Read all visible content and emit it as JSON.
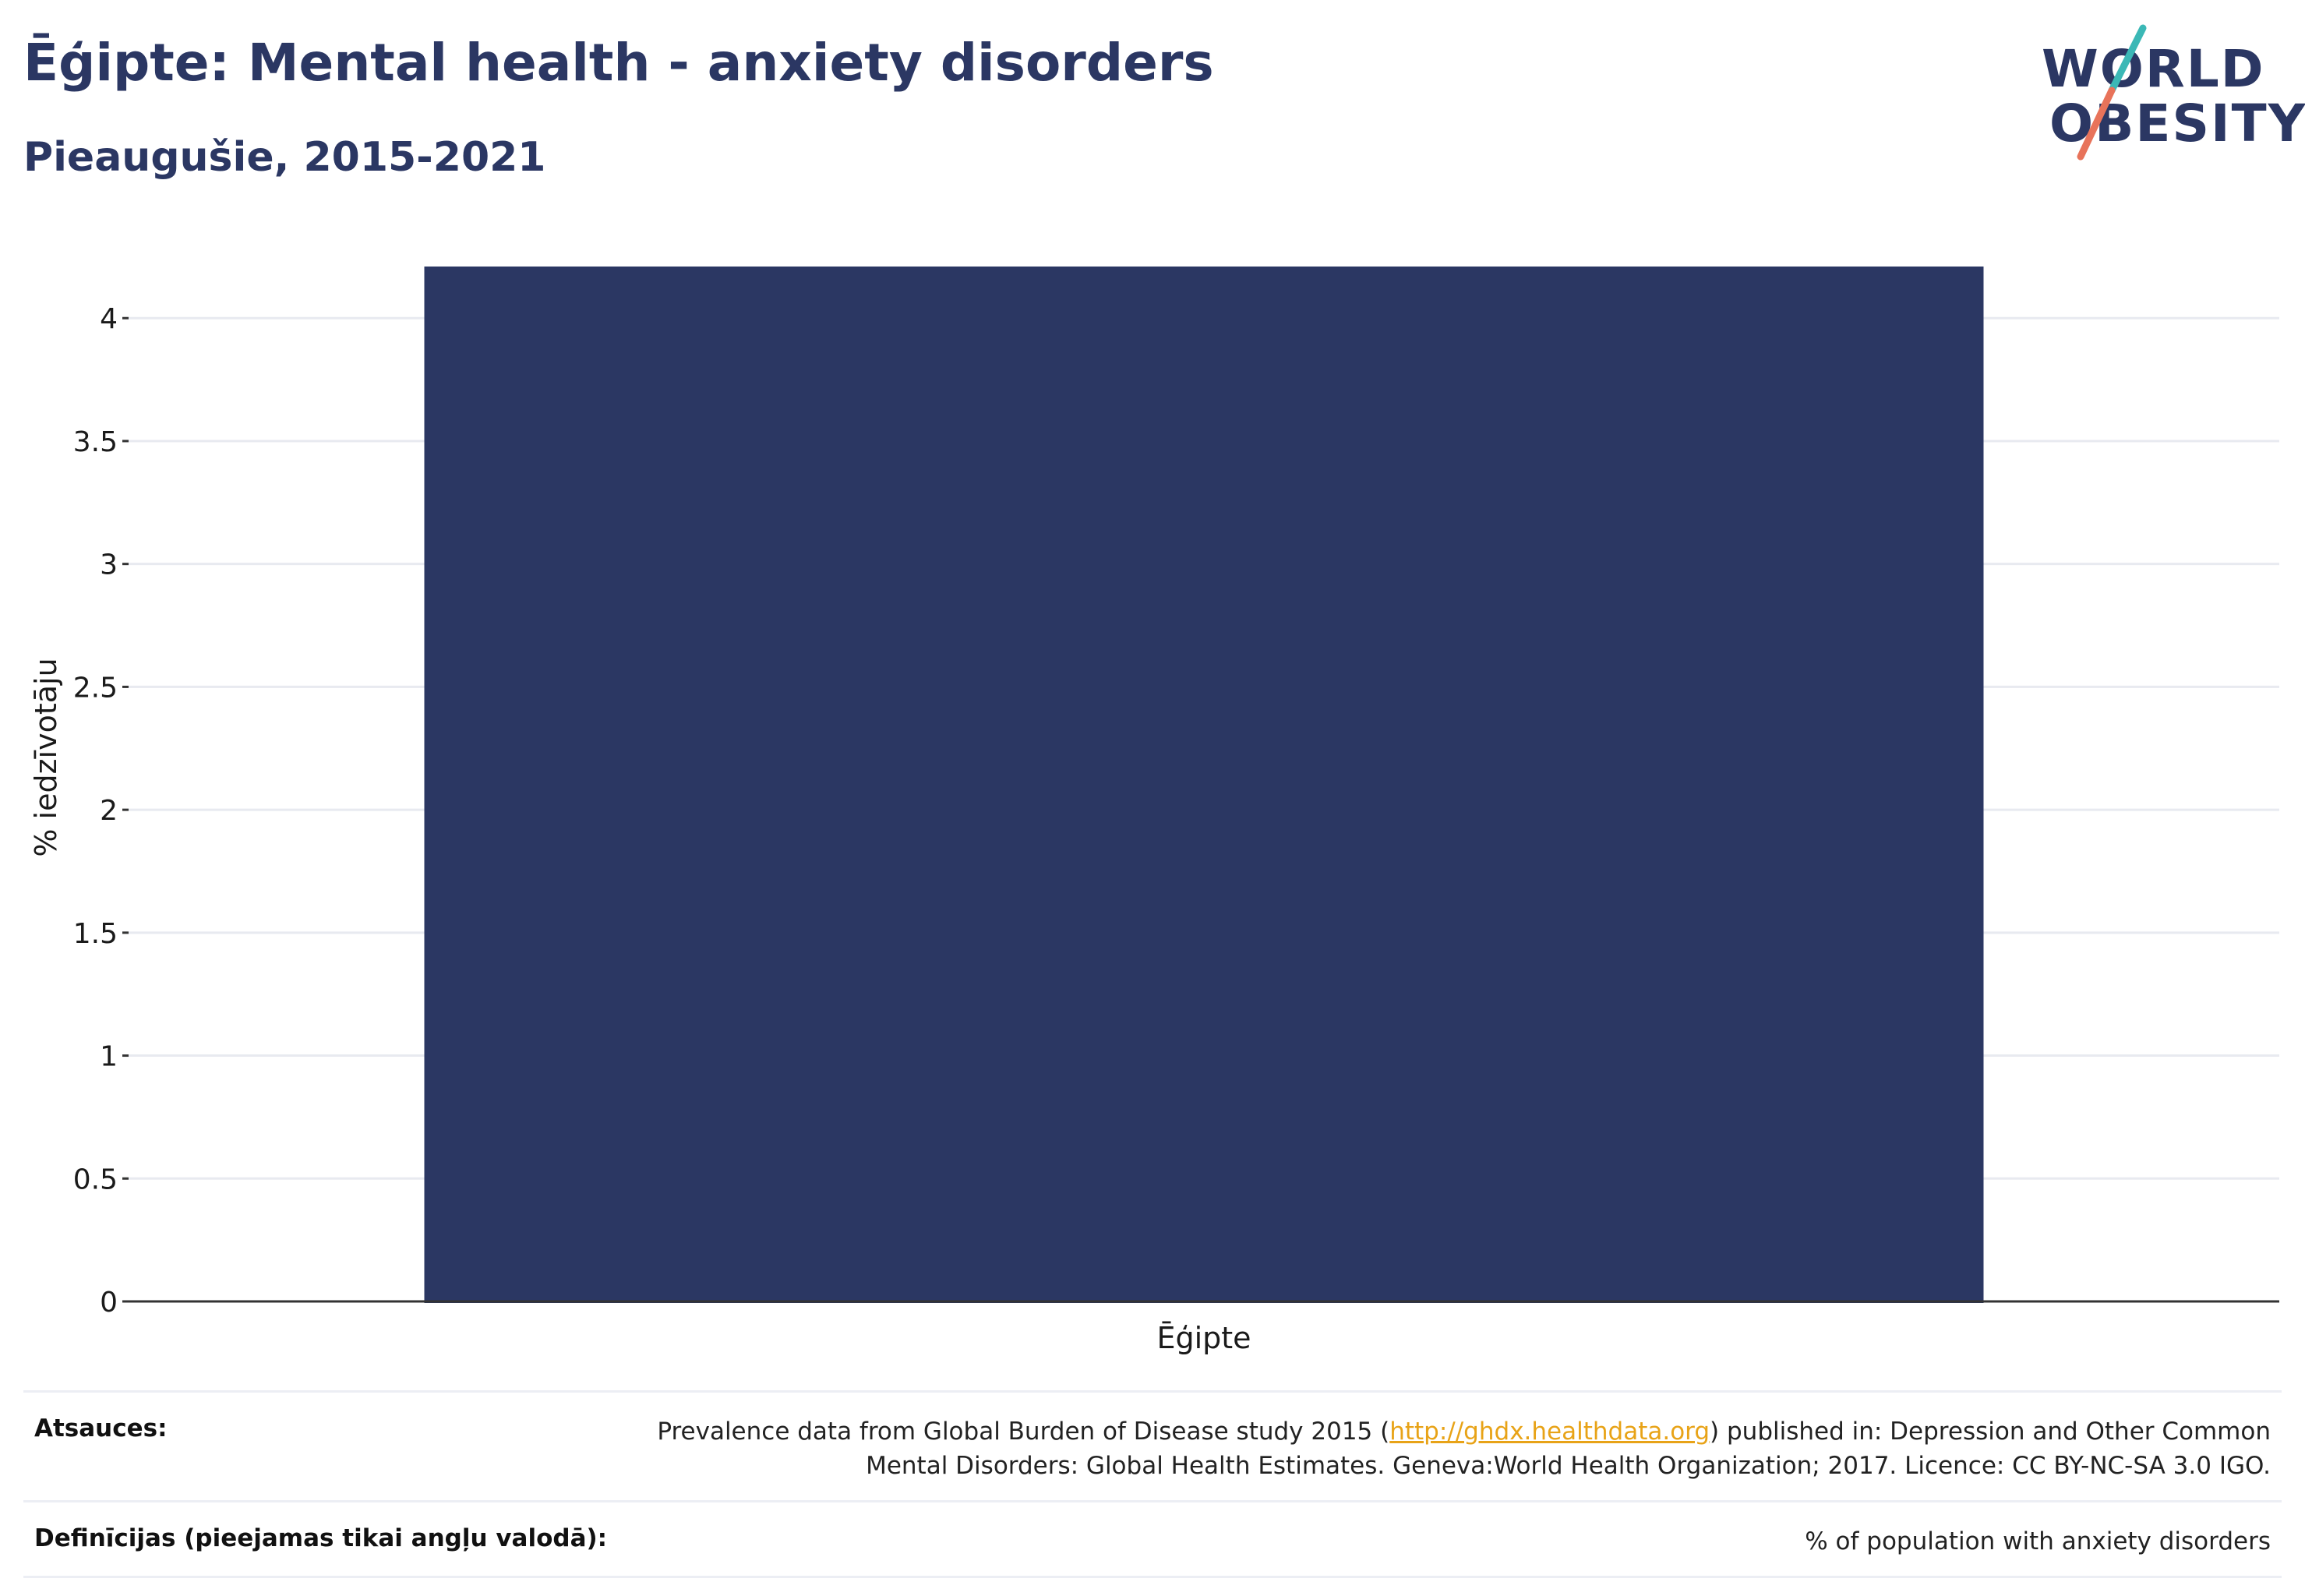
{
  "header": {
    "title": "Ēģipte: Mental health - anxiety disorders",
    "subtitle": "Pieaugušie, 2015-2021"
  },
  "logo": {
    "line1": "WORLD",
    "line2": "OBESITY",
    "colors": {
      "text": "#2b3763",
      "slash_top": "#3bb8b6",
      "slash_bottom": "#e8735a"
    }
  },
  "chart_data": {
    "type": "bar",
    "categories": [
      "Ēģipte"
    ],
    "values": [
      4.21
    ],
    "title": "Ēģipte: Mental health - anxiety disorders",
    "subtitle": "Pieaugušie, 2015-2021",
    "xlabel": "",
    "ylabel": "% iedzīvotāju",
    "ylim": [
      0,
      4.21
    ],
    "yticks": [
      0,
      0.5,
      1,
      1.5,
      2,
      2.5,
      3,
      3.5,
      4
    ],
    "ytick_labels": [
      "0",
      "0.5",
      "1",
      "1.5",
      "2",
      "2.5",
      "3",
      "3.5",
      "4"
    ],
    "grid": true,
    "bar_color": "#2b3763"
  },
  "footer": {
    "sources_label": "Atsauces:",
    "sources_text_before": "Prevalence data from Global Burden of Disease study 2015 (",
    "sources_link": "http://ghdx.healthdata.org",
    "sources_text_after": ") published in: Depression and Other Common Mental Disorders: Global Health Estimates. Geneva:World Health Organization; 2017. Licence: CC BY-NC-SA 3.0 IGO.",
    "definitions_label": "Definīcijas (pieejamas tikai angļu valodā):",
    "definitions_text": "% of population with anxiety disorders"
  }
}
